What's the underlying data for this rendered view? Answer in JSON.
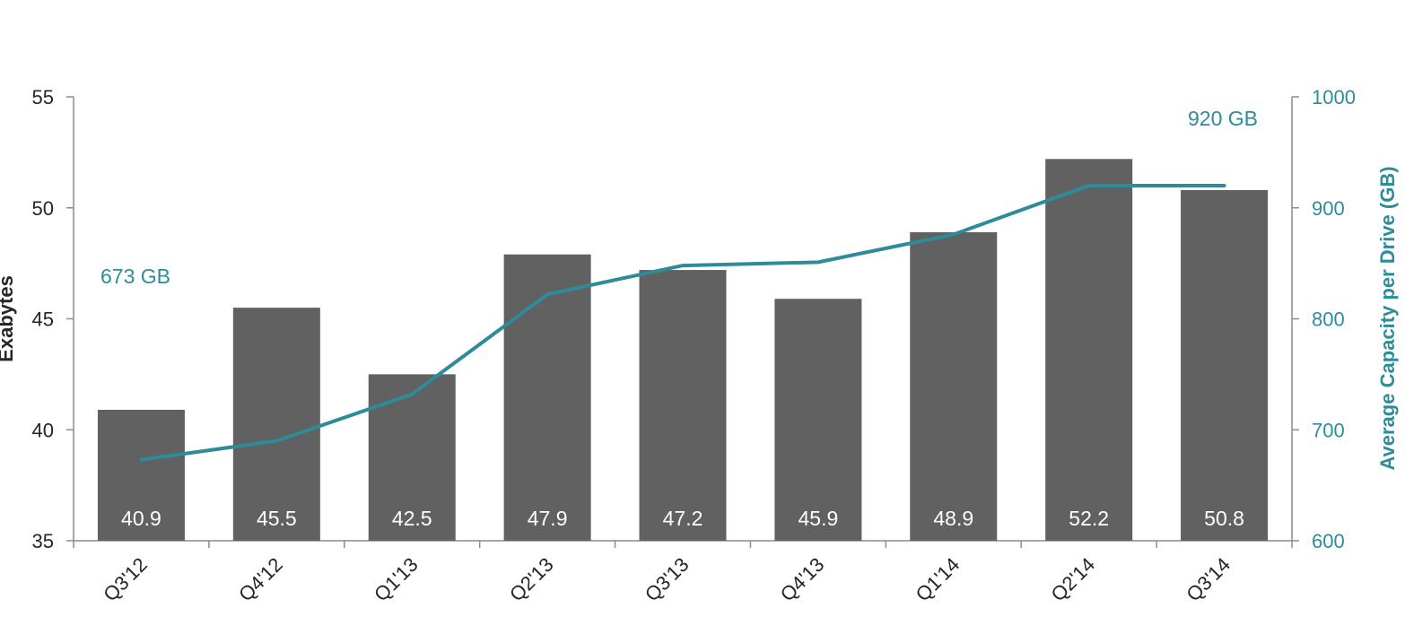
{
  "chart_data": {
    "type": "bar",
    "categories": [
      "Q3'12",
      "Q4'12",
      "Q1'13",
      "Q2'13",
      "Q3'13",
      "Q4'13",
      "Q1'14",
      "Q2'14",
      "Q3'14"
    ],
    "series": [
      {
        "values": [
          40.9,
          45.5,
          42.5,
          47.9,
          47.2,
          45.9,
          48.9,
          52.2,
          50.8
        ],
        "axis": "left",
        "render": "bar",
        "color": "#616161",
        "data_labels": [
          "40.9",
          "45.5",
          "42.5",
          "47.9",
          "47.2",
          "45.9",
          "48.9",
          "52.2",
          "50.8"
        ]
      },
      {
        "values": [
          673,
          690,
          732,
          822,
          848,
          851,
          876,
          920,
          920
        ],
        "axis": "right",
        "render": "line",
        "color": "#2e8b9a"
      }
    ],
    "annotations": [
      {
        "text": "673 GB",
        "color": "#2e8b9a"
      },
      {
        "text": "920 GB",
        "color": "#2e8b9a"
      }
    ],
    "ylabel": "Exabytes",
    "y2label": "Average Capacity per Drive (GB)",
    "ylim": [
      35,
      55
    ],
    "y2lim": [
      600,
      1000
    ],
    "yticks": [
      "35",
      "40",
      "45",
      "50",
      "55"
    ],
    "y2ticks": [
      "600",
      "700",
      "800",
      "900",
      "1000"
    ],
    "grid": false,
    "colors": {
      "bar": "#616161",
      "line": "#2e8b9a",
      "left_axis": "#262626",
      "right_axis": "#2e8b9a"
    }
  }
}
